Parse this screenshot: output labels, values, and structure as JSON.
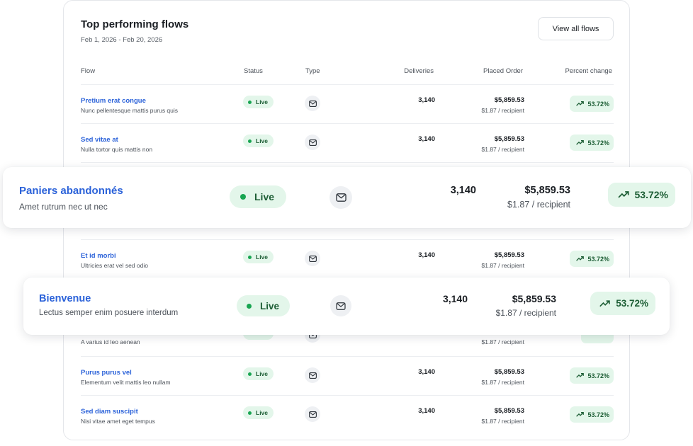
{
  "card": {
    "title": "Top performing flows",
    "date_range": "Feb 1, 2026 - Feb 20, 2026",
    "view_all_label": "View all flows"
  },
  "table": {
    "headers": {
      "flow": "Flow",
      "status": "Status",
      "type": "Type",
      "deliveries": "Deliveries",
      "placed_order": "Placed Order",
      "percent_change": "Percent change"
    },
    "rows": [
      {
        "name": "Pretium erat congue",
        "desc": "Nunc pellentesque mattis purus quis",
        "status": "Live",
        "type_icon": "email-icon",
        "deliveries": "3,140",
        "amount": "$5,859.53",
        "per_recipient": "$1.87 / recipient",
        "pct": "53.72%"
      },
      {
        "name": "Sed vitae at",
        "desc": "Nulla tortor quis mattis non",
        "status": "Live",
        "type_icon": "email-icon",
        "deliveries": "3,140",
        "amount": "$5,859.53",
        "per_recipient": "$1.87 / recipient",
        "pct": "53.72%"
      },
      {
        "name": "Et id morbi",
        "desc": "Ultricies erat vel sed odio",
        "status": "Live",
        "type_icon": "email-icon",
        "deliveries": "3,140",
        "amount": "$5,859.53",
        "per_recipient": "$1.87 / recipient",
        "pct": "53.72%"
      },
      {
        "name": "Purus purus vel",
        "desc": "Elementum velit mattis leo nullam",
        "status": "Live",
        "type_icon": "email-icon",
        "deliveries": "3,140",
        "amount": "$5,859.53",
        "per_recipient": "$1.87 / recipient",
        "pct": "53.72%"
      },
      {
        "name": "Sed diam suscipit",
        "desc": "Nisi vitae amet eget tempus",
        "status": "Live",
        "type_icon": "email-icon",
        "deliveries": "3,140",
        "amount": "$5,859.53",
        "per_recipient": "$1.87 / recipient",
        "pct": "53.72%"
      }
    ],
    "partial_row": {
      "desc": "A varius id leo aenean",
      "per_recipient": "$1.87 / recipient"
    }
  },
  "highlights": [
    {
      "name": "Paniers abandonnés",
      "desc": "Amet rutrum nec ut nec",
      "status": "Live",
      "type_icon": "email-icon",
      "deliveries": "3,140",
      "amount": "$5,859.53",
      "per_recipient": "$1.87 / recipient",
      "pct": "53.72%"
    },
    {
      "name": "Bienvenue",
      "desc": "Lectus semper enim posuere interdum",
      "status": "Live",
      "type_icon": "email-icon",
      "deliveries": "3,140",
      "amount": "$5,859.53",
      "per_recipient": "$1.87 / recipient",
      "pct": "53.72%"
    }
  ],
  "colors": {
    "link_blue": "#2b62d9",
    "live_bg": "#e3f6ea",
    "live_dot": "#18a551",
    "positive_text": "#1d5e35"
  }
}
